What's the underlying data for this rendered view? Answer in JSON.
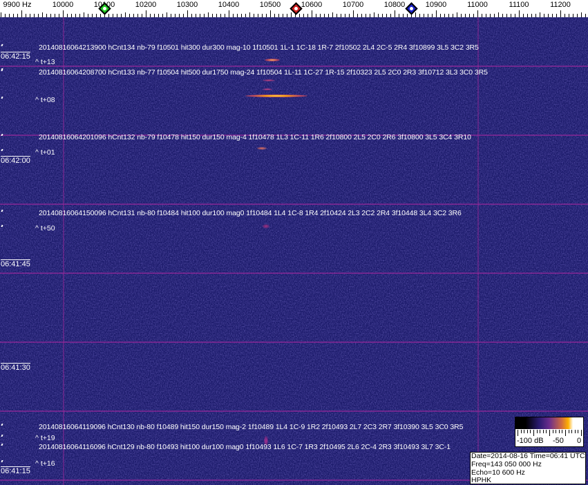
{
  "freq_axis": {
    "labels": [
      "9900 Hz",
      "10000",
      "10100",
      "10200",
      "10300",
      "10400",
      "10500",
      "10600",
      "10700",
      "10800",
      "10900",
      "11000",
      "11100",
      "11200"
    ],
    "markers": [
      {
        "name": "green-marker",
        "color": "#22cc22",
        "freq_hz": 10100
      },
      {
        "name": "red-marker",
        "color": "#d42020",
        "freq_hz": 10562
      },
      {
        "name": "blue-marker",
        "color": "#1a22c8",
        "freq_hz": 10840
      }
    ]
  },
  "time_labels": [
    "06:42:15",
    "06:42:00",
    "06:41:45",
    "06:41:30",
    "06:41:15"
  ],
  "detections": [
    {
      "text": "20140816064213900 hCnt134 nb-79 f10501 hit300 dur300 mag-10 1f10501 1L-1 1C-18 1R-7 2f10502 2L4 2C-5 2R4 3f10899 3L5 3C2 3R5",
      "offset": "^ t+13"
    },
    {
      "text": "20140816064208700 hCnt133 nb-77 f10504 hit500 dur1750 mag-24 1f10504 1L-11 1C-27 1R-15 2f10323 2L5 2C0 2R3 3f10712 3L3 3C0 3R5",
      "offset": "^ t+08"
    },
    {
      "text": "20140816064201096 hCnt132 nb-79 f10478 hit150 dur150 mag-4 1f10478 1L3 1C-11 1R6 2f10800 2L5 2C0 2R6 3f10800 3L5 3C4 3R10",
      "offset": "^ t+01"
    },
    {
      "text": "20140816064150096 hCnt131 nb-80 f10484 hit100 dur100 mag0 1f10484 1L4 1C-8 1R4 2f10424 2L3 2C2 2R4 3f10448 3L4 3C2 3R6",
      "offset": "^ t+50"
    },
    {
      "text": "20140816064119096 hCnt130 nb-80 f10489 hit150 dur150 mag-2 1f10489 1L4 1C-9 1R2 2f10493 2L7 2C3 2R7 3f10390 3L5 3C0 3R5",
      "offset": "^ t+19"
    },
    {
      "text": "20140816064116096 hCnt129 nb-80 f10493 hit100 dur100 mag0 1f10493 1L6 1C-7 1R3 2f10495 2L6 2C-4 2R3 3f10493 3L7 3C-1",
      "offset": "^ t+16"
    }
  ],
  "colorbar": {
    "labels": [
      "-100 dB",
      "-50",
      "0"
    ]
  },
  "info": {
    "date_time": "Date=2014-08-16 Time=06:41 UTC",
    "freq": "Freq=143 050 000 Hz",
    "echo": "Echo=10 600 Hz",
    "station": "HPHK"
  },
  "colors": {
    "background": "#1b1a6a",
    "grid": "#aa28a0"
  }
}
